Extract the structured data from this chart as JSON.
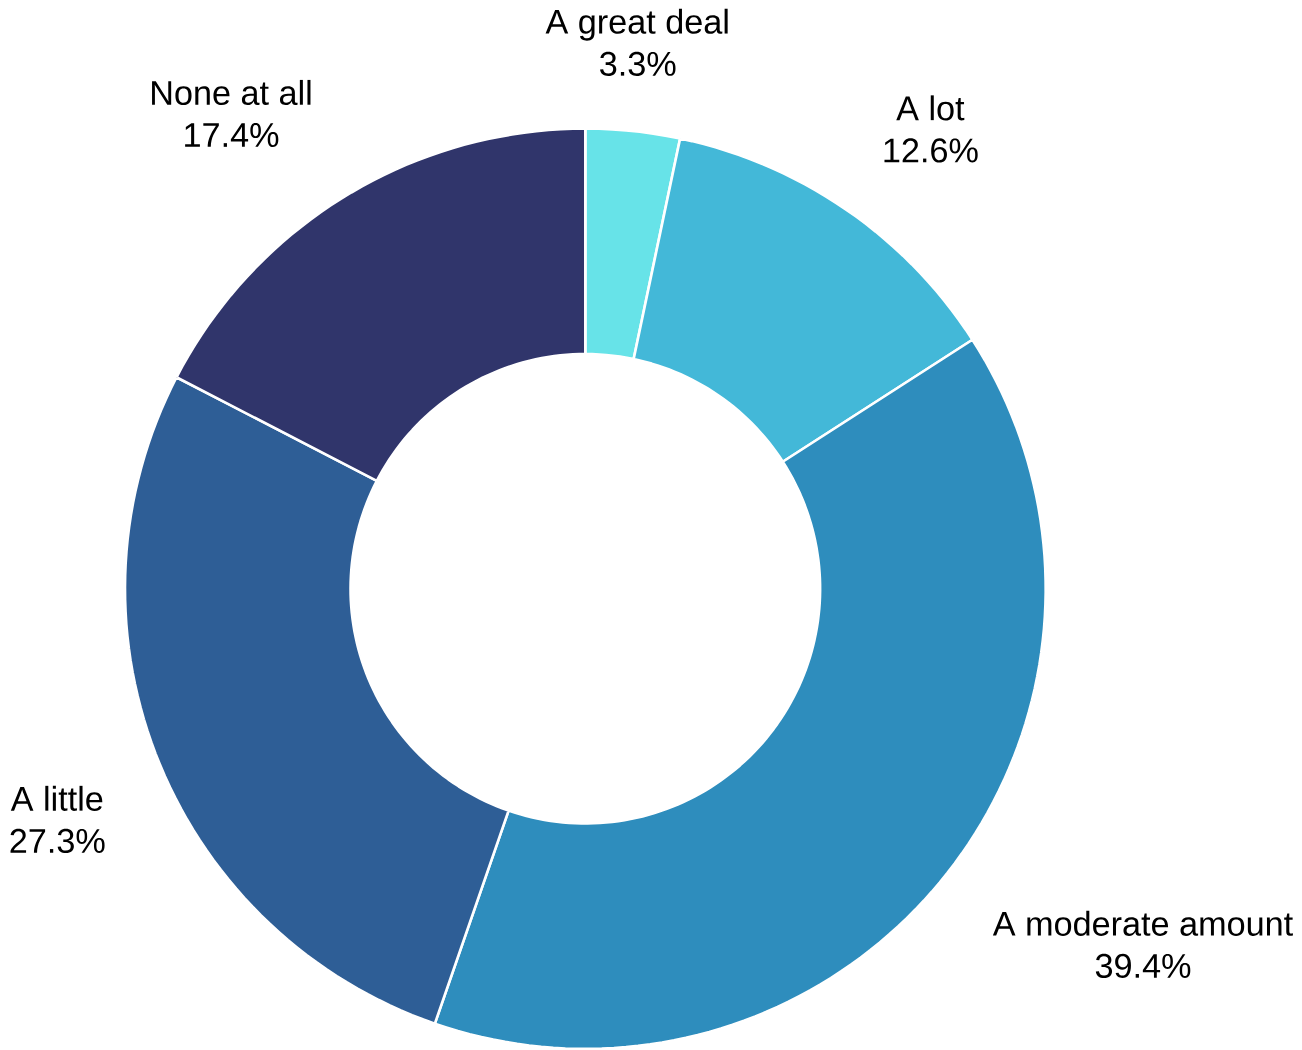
{
  "chart_data": {
    "type": "donut",
    "categories": [
      "A great deal",
      "A lot",
      "A moderate amount",
      "A little",
      "None at all"
    ],
    "values": [
      3.3,
      12.6,
      39.4,
      27.3,
      17.4
    ],
    "colors": [
      "#67e3e8",
      "#43b8d8",
      "#2e8dbd",
      "#2e5e96",
      "#30356b"
    ],
    "value_labels": [
      "3.3%",
      "12.6%",
      "39.4%",
      "27.3%",
      "17.4%"
    ]
  }
}
